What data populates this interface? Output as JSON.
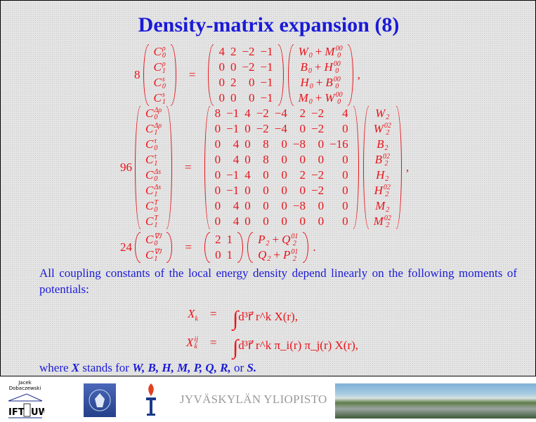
{
  "title": "Density-matrix expansion (8)",
  "eq1": {
    "prefix": "8",
    "left": [
      [
        "C",
        "0",
        "ρ"
      ],
      [
        "C",
        "1",
        "ρ"
      ],
      [
        "C",
        "0",
        "s"
      ],
      [
        "C",
        "1",
        "s"
      ]
    ],
    "matrix": [
      [
        "4",
        "2",
        "−2",
        "−1"
      ],
      [
        "0",
        "0",
        "−2",
        "−1"
      ],
      [
        "0",
        "2",
        "0",
        "−1"
      ],
      [
        "0",
        "0",
        "0",
        "−1"
      ]
    ],
    "right": [
      [
        [
          "W",
          "0",
          ""
        ],
        "+",
        [
          "M",
          "0",
          "00"
        ]
      ],
      [
        [
          "B",
          "0",
          ""
        ],
        "+",
        [
          "H",
          "0",
          "00"
        ]
      ],
      [
        [
          "H",
          "0",
          ""
        ],
        "+",
        [
          "B",
          "0",
          "00"
        ]
      ],
      [
        [
          "M",
          "0",
          ""
        ],
        "+",
        [
          "W",
          "0",
          "00"
        ]
      ]
    ],
    "punct": ","
  },
  "eq2": {
    "prefix": "96",
    "left": [
      [
        "C",
        "0",
        "Δρ"
      ],
      [
        "C",
        "1",
        "Δρ"
      ],
      [
        "C",
        "0",
        "τ"
      ],
      [
        "C",
        "1",
        "τ"
      ],
      [
        "C",
        "0",
        "Δs"
      ],
      [
        "C",
        "1",
        "Δs"
      ],
      [
        "C",
        "0",
        "T"
      ],
      [
        "C",
        "1",
        "T"
      ]
    ],
    "matrix": [
      [
        "8",
        "−1",
        "4",
        "−2",
        "−4",
        "2",
        "−2",
        "4"
      ],
      [
        "0",
        "−1",
        "0",
        "−2",
        "−4",
        "0",
        "−2",
        "0"
      ],
      [
        "0",
        "4",
        "0",
        "8",
        "0",
        "−8",
        "0",
        "−16"
      ],
      [
        "0",
        "4",
        "0",
        "8",
        "0",
        "0",
        "0",
        "0"
      ],
      [
        "0",
        "−1",
        "4",
        "0",
        "0",
        "2",
        "−2",
        "0"
      ],
      [
        "0",
        "−1",
        "0",
        "0",
        "0",
        "0",
        "−2",
        "0"
      ],
      [
        "0",
        "4",
        "0",
        "0",
        "0",
        "−8",
        "0",
        "0"
      ],
      [
        "0",
        "4",
        "0",
        "0",
        "0",
        "0",
        "0",
        "0"
      ]
    ],
    "right": [
      [
        [
          "W",
          "2",
          ""
        ]
      ],
      [
        [
          "W",
          "2",
          "02"
        ]
      ],
      [
        [
          "B",
          "2",
          ""
        ]
      ],
      [
        [
          "B",
          "2",
          "02"
        ]
      ],
      [
        [
          "H",
          "2",
          ""
        ]
      ],
      [
        [
          "H",
          "2",
          "02"
        ]
      ],
      [
        [
          "M",
          "2",
          ""
        ]
      ],
      [
        [
          "M",
          "2",
          "02"
        ]
      ]
    ],
    "punct": ","
  },
  "eq3": {
    "prefix": "24",
    "left": [
      [
        "C",
        "0",
        "∇J"
      ],
      [
        "C",
        "1",
        "∇J"
      ]
    ],
    "matrix": [
      [
        "2",
        "1"
      ],
      [
        "0",
        "1"
      ]
    ],
    "right": [
      [
        [
          "P",
          "2",
          ""
        ],
        "+",
        [
          "Q",
          "2",
          "01"
        ]
      ],
      [
        [
          "Q",
          "2",
          ""
        ],
        "+",
        [
          "P",
          "2",
          "01"
        ]
      ]
    ],
    "punct": "."
  },
  "equals": "=",
  "paragraph": "All coupling constants of the local energy density depend linearly on the following moments of potentials:",
  "integrals": [
    {
      "lhs_base": "X",
      "lhs_sub": "k",
      "lhs_sup": "",
      "rhs": "d³r⃗ r^k X(r),"
    },
    {
      "lhs_base": "X",
      "lhs_sub": "k",
      "lhs_sup": "ij",
      "rhs": "d³r⃗ r^k π_i(r) π_j(r) X(r),"
    }
  ],
  "where": {
    "text1": "where",
    "X": "X",
    "text2": "stands for",
    "list": "W, B, H, M, P, Q, R,",
    "or": "or",
    "last": "S."
  },
  "footer": {
    "author": "Jacek Dobaczewski",
    "logo1_text": "IFT UW",
    "university": "JYVÄSKYLÄN YLIOPISTO"
  },
  "colors": {
    "title": "#1a1ad8",
    "math": "#e8141a",
    "text": "#1a1ad8"
  }
}
